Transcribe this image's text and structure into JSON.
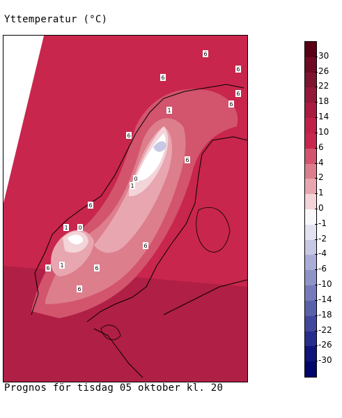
{
  "title": "Yttemperatur (°C)",
  "caption": "Prognos för tisdag 05 oktober kl. 20",
  "legend": {
    "labels": [
      "30",
      "26",
      "22",
      "18",
      "14",
      "10",
      "6",
      "4",
      "2",
      "1",
      "0",
      "-1",
      "-2",
      "-4",
      "-6",
      "-10",
      "-14",
      "-18",
      "-22",
      "-26",
      "-30"
    ],
    "colors": [
      "#5a0015",
      "#6e0a22",
      "#7d1430",
      "#93183a",
      "#a91b40",
      "#c02148",
      "#c8264c",
      "#d2546d",
      "#dd7e8c",
      "#e8a6b0",
      "#f3d4d8",
      "#f8f8fb",
      "#e2e2f0",
      "#c6c8e4",
      "#aaaed6",
      "#8f94c8",
      "#757bba",
      "#5a61ab",
      "#40479c",
      "#262e8d",
      "#0e147a",
      "#00066a"
    ]
  },
  "map": {
    "contour_labels": [
      "6",
      "6",
      "6",
      "6",
      "6",
      "1",
      "6",
      "0",
      "1",
      "6",
      "6",
      "6",
      "1",
      "0",
      "6",
      "1",
      "6",
      "6"
    ]
  }
}
